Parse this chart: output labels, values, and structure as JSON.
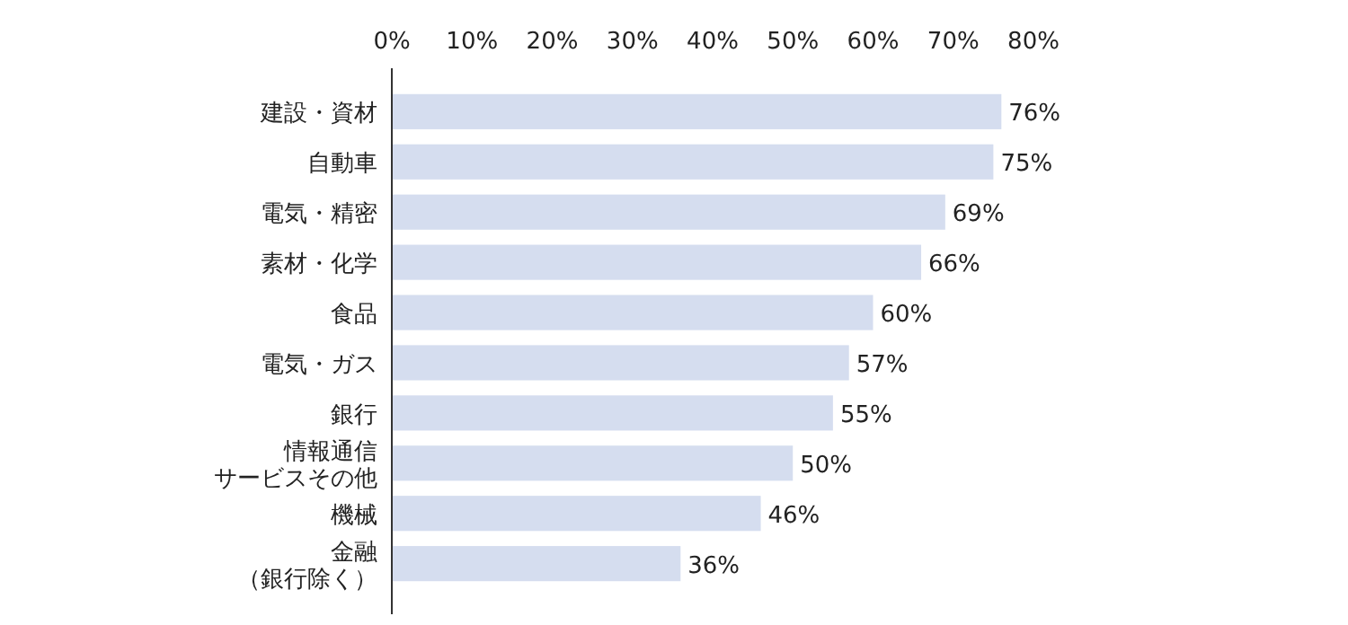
{
  "chart_data": {
    "type": "bar",
    "orientation": "horizontal",
    "categories": [
      "建設・資材",
      "自動車",
      "電気・精密",
      "素材・化学",
      "食品",
      "電気・ガス",
      "銀行",
      "情報通信サービスその他",
      "機械",
      "金融（銀行除く）"
    ],
    "values": [
      76,
      75,
      69,
      66,
      60,
      57,
      55,
      50,
      46,
      36
    ],
    "value_labels": [
      "76%",
      "75%",
      "69%",
      "66%",
      "60%",
      "57%",
      "55%",
      "50%",
      "46%",
      "36%"
    ],
    "color": "#d5ddef",
    "xlim": [
      0,
      80
    ],
    "xticks": [
      {
        "value": 0,
        "label": "0%"
      },
      {
        "value": 10,
        "label": "10%"
      },
      {
        "value": 20,
        "label": "20%"
      },
      {
        "value": 30,
        "label": "30%"
      },
      {
        "value": 40,
        "label": "40%"
      },
      {
        "value": 50,
        "label": "50%"
      },
      {
        "value": 60,
        "label": "60%"
      },
      {
        "value": 70,
        "label": "70%"
      },
      {
        "value": 80,
        "label": "80%"
      }
    ],
    "grid": false
  }
}
